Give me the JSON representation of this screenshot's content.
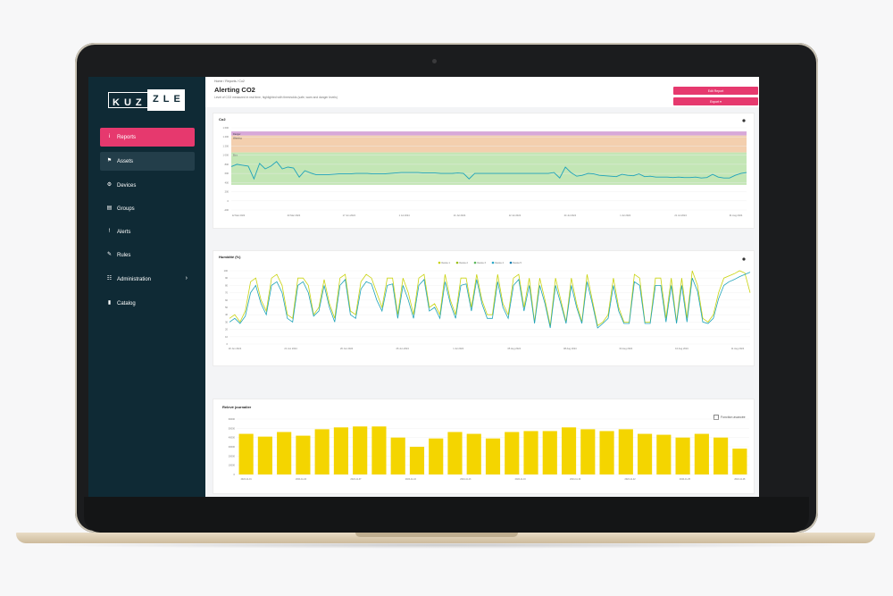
{
  "sidebar": {
    "logo": {
      "left": "KUZ",
      "right": "ZLE"
    },
    "items": [
      {
        "label": "Reports",
        "icon": "info-icon",
        "glyph": "i",
        "state": "active"
      },
      {
        "label": "Assets",
        "icon": "sitemap-icon",
        "glyph": "⚑",
        "state": "hover"
      },
      {
        "label": "Devices",
        "icon": "gear-icon",
        "glyph": "⚙",
        "state": ""
      },
      {
        "label": "Groups",
        "icon": "layers-icon",
        "glyph": "▤",
        "state": ""
      },
      {
        "label": "Alerts",
        "icon": "alert-icon",
        "glyph": "!",
        "state": ""
      },
      {
        "label": "Rules",
        "icon": "rules-icon",
        "glyph": "✎",
        "state": ""
      },
      {
        "label": "Administration",
        "icon": "users-icon",
        "glyph": "☷",
        "state": "",
        "chevron": "›"
      },
      {
        "label": "Catalog",
        "icon": "book-icon",
        "glyph": "▮",
        "state": ""
      }
    ]
  },
  "header": {
    "breadcrumb": "Home / Reports / Co2",
    "title": "Alerting CO2",
    "subtitle": "Level of CO2 measured in real time, highlighted with thresholds (safe, warn and danger levels)",
    "buttons": [
      "Edit Report",
      "Export ▾"
    ]
  },
  "cards": {
    "co2": {
      "title": "Co2"
    },
    "humidity": {
      "title": "Humidité (%)"
    },
    "energy": {
      "title": "Relevé journalier",
      "checkbox_label": "Fonction avancée"
    }
  },
  "colors": {
    "accent": "#e6396e",
    "sidebar": "#0f2a35",
    "danger_band": "#d7a8d9",
    "warn_band": "#f3cfae",
    "safe_band": "#c3e6b5",
    "bar": "#f4d500"
  },
  "chart_data": [
    {
      "type": "line",
      "title": "Co2",
      "y_ticks": [
        "1 600",
        "1 400",
        "1 200",
        "1 000",
        "800",
        "600",
        "400",
        "200",
        "0",
        "-200"
      ],
      "x_ticks": [
        "12 Mar 2024",
        "23 Mar 2024",
        "17 Jun 2024",
        "1 Jul 2024",
        "21 Jul 2024",
        "12 Jul 2024",
        "24 Jul 2024",
        "1 Jul 2024",
        "21 Jul 2024",
        "31 Aug 2024"
      ],
      "band_labels": [
        "Danger",
        "Warning",
        "Bien"
      ],
      "ylim": [
        -200,
        1600
      ],
      "bands": [
        {
          "name": "danger",
          "from": 1430,
          "to": 1520
        },
        {
          "name": "warning",
          "from": 1060,
          "to": 1430
        },
        {
          "name": "safe",
          "from": 350,
          "to": 1060
        }
      ],
      "series": [
        {
          "values": [
            750,
            800,
            780,
            760,
            480,
            820,
            700,
            760,
            860,
            700,
            740,
            720,
            520,
            660,
            610,
            570,
            570,
            570,
            580,
            590,
            590,
            590,
            600,
            600,
            600,
            590,
            590,
            590,
            600,
            610,
            620,
            620,
            620,
            620,
            610,
            610,
            610,
            600,
            600,
            600,
            610,
            600,
            480,
            600,
            600,
            600,
            600,
            600,
            600,
            600,
            600,
            600,
            600,
            600,
            600,
            600,
            600,
            620,
            500,
            740,
            620,
            540,
            560,
            600,
            590,
            560,
            550,
            540,
            530,
            580,
            560,
            550,
            590,
            530,
            540,
            520,
            520,
            520,
            510,
            520,
            510,
            510,
            520,
            500,
            510,
            580,
            520,
            500,
            500,
            560,
            600,
            620
          ]
        }
      ]
    },
    {
      "type": "line",
      "title": "Humidité (%)",
      "y_ticks": [
        "100",
        "90",
        "80",
        "70",
        "60",
        "50",
        "40",
        "30",
        "20",
        "10",
        "0"
      ],
      "x_ticks": [
        "20 Jun 2024",
        "21 Jun 2024",
        "26 Jun 2024",
        "26 Jun 2024",
        "1 Jul 2024",
        "05 Aug 2024",
        "08 Aug 2024",
        "04 Aug 2024",
        "10 Aug 2024",
        "11 Aug 2024"
      ],
      "legend": [
        "Device 1",
        "Device 2",
        "Device 3",
        "Device 4",
        "Device 5"
      ],
      "ylim": [
        0,
        100
      ],
      "series": [
        {
          "values": [
            35,
            40,
            30,
            45,
            85,
            90,
            60,
            45,
            90,
            95,
            80,
            40,
            35,
            90,
            90,
            80,
            40,
            50,
            88,
            55,
            35,
            90,
            95,
            45,
            40,
            85,
            95,
            90,
            70,
            50,
            90,
            90,
            40,
            90,
            70,
            40,
            90,
            95,
            50,
            55,
            40,
            95,
            60,
            40,
            90,
            90,
            50,
            95,
            60,
            40,
            40,
            95,
            55,
            40,
            90,
            95,
            50,
            90,
            30,
            90,
            60,
            25,
            90,
            60,
            30,
            90,
            55,
            30,
            95,
            60,
            25,
            30,
            40,
            90,
            50,
            30,
            30,
            95,
            90,
            30,
            30,
            90,
            90,
            35,
            90,
            30,
            90,
            35,
            100,
            80,
            35,
            30,
            40,
            70,
            90,
            93,
            96,
            100,
            97,
            70
          ]
        },
        {
          "values": [
            30,
            35,
            28,
            38,
            70,
            80,
            55,
            40,
            80,
            85,
            70,
            35,
            30,
            80,
            85,
            70,
            38,
            45,
            80,
            50,
            30,
            80,
            88,
            40,
            35,
            75,
            85,
            82,
            60,
            45,
            80,
            82,
            35,
            80,
            60,
            35,
            80,
            88,
            45,
            50,
            35,
            85,
            55,
            35,
            80,
            82,
            45,
            88,
            55,
            35,
            35,
            85,
            50,
            35,
            80,
            88,
            45,
            80,
            28,
            80,
            55,
            22,
            80,
            55,
            28,
            80,
            50,
            28,
            85,
            55,
            22,
            28,
            35,
            80,
            45,
            28,
            28,
            85,
            80,
            28,
            28,
            80,
            80,
            30,
            80,
            28,
            80,
            30,
            90,
            72,
            30,
            28,
            35,
            62,
            80,
            85,
            88,
            92,
            95,
            98
          ]
        }
      ]
    },
    {
      "type": "bar",
      "title": "Relevé journalier",
      "y_ticks": [
        "60000",
        "50000",
        "40000",
        "30000",
        "20000",
        "10000",
        "0"
      ],
      "x_ticks": [
        "2024-11-01",
        "2024-11-04",
        "2024-11-07",
        "2024-11-10",
        "2024-11-13",
        "2024-11-16",
        "2024-11-19",
        "2024-11-22",
        "2024-11-25",
        "2024-11-28"
      ],
      "ylim": [
        0,
        60000
      ],
      "values": [
        44000,
        41000,
        46000,
        42000,
        49000,
        51000,
        52000,
        52000,
        40000,
        30000,
        39000,
        46000,
        44000,
        39000,
        46000,
        47000,
        47000,
        51000,
        49000,
        47000,
        49000,
        44000,
        43000,
        40000,
        44000,
        40000,
        28000
      ]
    }
  ]
}
